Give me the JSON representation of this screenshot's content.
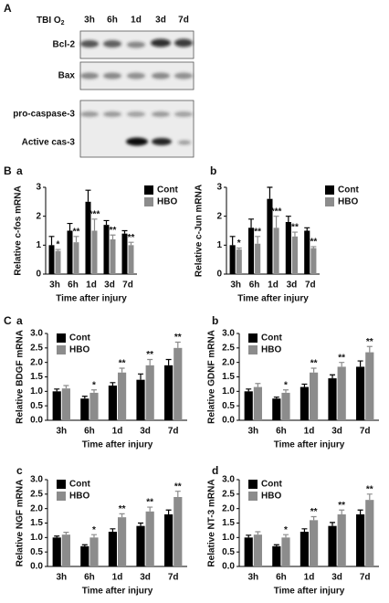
{
  "panel_a": {
    "letter": "A",
    "header_label": "TBI O",
    "header_sub": "2",
    "lanes": [
      "3h",
      "6h",
      "1d",
      "3d",
      "7d"
    ],
    "rows": [
      "Bcl-2",
      "Bax",
      "pro-caspase-3",
      "Active cas-3"
    ]
  },
  "section_labels": [
    "B",
    "C"
  ],
  "chart_data": [
    {
      "type": "bar",
      "panel": "a",
      "ylabel": "Relative c-fos mRNA",
      "xlabel": "Time after injury",
      "categories": [
        "3h",
        "6h",
        "1d",
        "3d",
        "7d"
      ],
      "ylim": [
        0,
        3
      ],
      "yticks": [
        0,
        1,
        2,
        3
      ],
      "legend": "upper right",
      "series": [
        {
          "name": "Cont",
          "color": "#000000",
          "values": [
            1.0,
            1.5,
            2.5,
            1.7,
            1.4
          ],
          "errors": [
            0.3,
            0.25,
            0.4,
            0.15,
            0.1
          ]
        },
        {
          "name": "HBO",
          "color": "#8c8c8c",
          "values": [
            0.8,
            1.1,
            1.5,
            1.2,
            1.0
          ],
          "errors": [
            0.05,
            0.2,
            0.4,
            0.15,
            0.1
          ],
          "significance": [
            "*",
            "**",
            "***",
            "**",
            "**"
          ]
        }
      ]
    },
    {
      "type": "bar",
      "panel": "b",
      "ylabel": "Relative c-Jun mRNA",
      "xlabel": "Time after injury",
      "categories": [
        "3h",
        "6h",
        "1d",
        "3d",
        "7d"
      ],
      "ylim": [
        0,
        3
      ],
      "yticks": [
        0,
        1,
        2,
        3
      ],
      "legend": "upper right",
      "series": [
        {
          "name": "Cont",
          "color": "#000000",
          "values": [
            1.0,
            1.6,
            2.6,
            1.8,
            1.5
          ],
          "errors": [
            0.3,
            0.3,
            0.4,
            0.2,
            0.1
          ]
        },
        {
          "name": "HBO",
          "color": "#8c8c8c",
          "values": [
            0.85,
            1.05,
            1.6,
            1.3,
            0.9
          ],
          "errors": [
            0.05,
            0.25,
            0.4,
            0.15,
            0.05
          ],
          "significance": [
            "*",
            "**",
            "***",
            "**",
            "**"
          ]
        }
      ]
    },
    {
      "type": "bar",
      "panel": "a",
      "ylabel": "Relative BDGF mRNA",
      "xlabel": "Time after injury",
      "categories": [
        "3h",
        "6h",
        "1d",
        "3d",
        "7d"
      ],
      "ylim": [
        0,
        3
      ],
      "yticks": [
        {
          "value": 0,
          "label": "0.0"
        },
        0.5,
        {
          "value": 1,
          "label": "1.0"
        },
        1.5,
        {
          "value": 2,
          "label": "2.0"
        },
        2.5,
        {
          "value": 3,
          "label": "3.0"
        }
      ],
      "legend": "upper left",
      "series": [
        {
          "name": "Cont",
          "color": "#000000",
          "values": [
            1.0,
            0.75,
            1.2,
            1.4,
            1.9
          ],
          "errors": [
            0.08,
            0.08,
            0.1,
            0.2,
            0.2
          ]
        },
        {
          "name": "HBO",
          "color": "#8c8c8c",
          "values": [
            1.1,
            0.95,
            1.65,
            1.9,
            2.5
          ],
          "errors": [
            0.1,
            0.1,
            0.15,
            0.2,
            0.2
          ],
          "significance": [
            null,
            "*",
            "**",
            "**",
            "**"
          ]
        }
      ]
    },
    {
      "type": "bar",
      "panel": "b",
      "ylabel": "Relative GDNF mRNA",
      "xlabel": "Time after injury",
      "categories": [
        "3h",
        "6h",
        "1d",
        "3d",
        "7d"
      ],
      "ylim": [
        0,
        3
      ],
      "yticks": [
        {
          "value": 0,
          "label": "0.0"
        },
        0.5,
        {
          "value": 1,
          "label": "1.0"
        },
        1.5,
        {
          "value": 2,
          "label": "2.0"
        },
        2.5,
        {
          "value": 3,
          "label": "3.0"
        }
      ],
      "legend": "upper left",
      "series": [
        {
          "name": "Cont",
          "color": "#000000",
          "values": [
            1.0,
            0.75,
            1.15,
            1.45,
            1.85
          ],
          "errors": [
            0.08,
            0.05,
            0.1,
            0.12,
            0.2
          ]
        },
        {
          "name": "HBO",
          "color": "#8c8c8c",
          "values": [
            1.15,
            0.95,
            1.65,
            1.85,
            2.35
          ],
          "errors": [
            0.12,
            0.1,
            0.15,
            0.15,
            0.2
          ],
          "significance": [
            null,
            "*",
            "**",
            "**",
            "**"
          ]
        }
      ]
    },
    {
      "type": "bar",
      "panel": "c",
      "ylabel": "Relative NGF mRNA",
      "xlabel": "Time after injury",
      "categories": [
        "3h",
        "6h",
        "1d",
        "3d",
        "7d"
      ],
      "ylim": [
        0,
        3
      ],
      "yticks": [
        {
          "value": 0,
          "label": "0.0"
        },
        0.5,
        {
          "value": 1,
          "label": "1.0"
        },
        1.5,
        {
          "value": 2,
          "label": "2.0"
        },
        2.5,
        {
          "value": 3,
          "label": "3.0"
        }
      ],
      "legend": "upper left",
      "series": [
        {
          "name": "Cont",
          "color": "#000000",
          "values": [
            1.0,
            0.7,
            1.2,
            1.4,
            1.8
          ],
          "errors": [
            0.05,
            0.05,
            0.1,
            0.1,
            0.15
          ]
        },
        {
          "name": "HBO",
          "color": "#8c8c8c",
          "values": [
            1.1,
            1.0,
            1.7,
            1.9,
            2.4
          ],
          "errors": [
            0.08,
            0.1,
            0.12,
            0.15,
            0.2
          ],
          "significance": [
            null,
            "*",
            "**",
            "**",
            "**"
          ]
        }
      ]
    },
    {
      "type": "bar",
      "panel": "d",
      "ylabel": "Relative NT-3 mRNA",
      "xlabel": "Time after injury",
      "categories": [
        "3h",
        "6h",
        "1d",
        "3d",
        "7d"
      ],
      "ylim": [
        0,
        3
      ],
      "yticks": [
        {
          "value": 0,
          "label": "0.0"
        },
        0.5,
        {
          "value": 1,
          "label": "1.0"
        },
        1.5,
        {
          "value": 2,
          "label": "2.0"
        },
        2.5,
        {
          "value": 3,
          "label": "3.0"
        }
      ],
      "legend": "upper left",
      "series": [
        {
          "name": "Cont",
          "color": "#000000",
          "values": [
            1.0,
            0.7,
            1.2,
            1.4,
            1.8
          ],
          "errors": [
            0.08,
            0.05,
            0.1,
            0.12,
            0.15
          ]
        },
        {
          "name": "HBO",
          "color": "#8c8c8c",
          "values": [
            1.1,
            1.0,
            1.6,
            1.8,
            2.3
          ],
          "errors": [
            0.1,
            0.1,
            0.12,
            0.15,
            0.2
          ],
          "significance": [
            null,
            "*",
            "**",
            "**",
            "**"
          ]
        }
      ]
    }
  ]
}
